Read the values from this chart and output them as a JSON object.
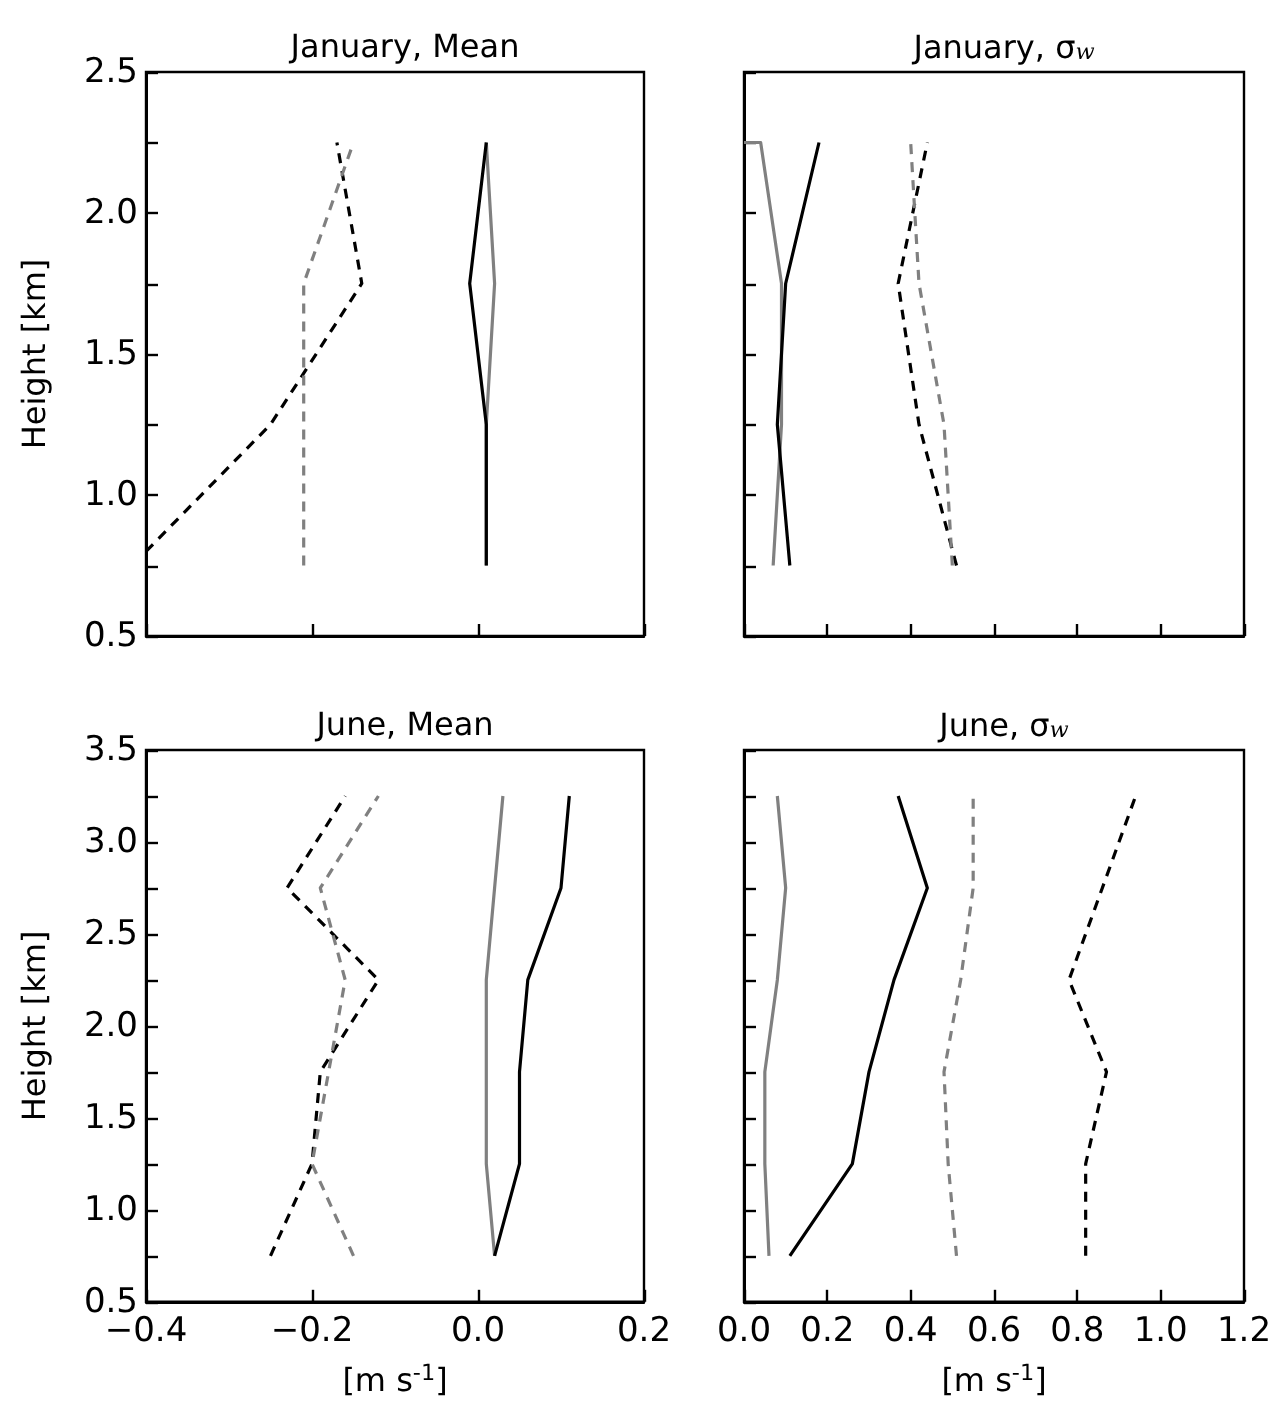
{
  "chart_data": [
    {
      "type": "line",
      "title": "January, Mean",
      "ylabel": "Height [km]",
      "marker": "none",
      "grid": false,
      "tick_labels": "y",
      "xlim": [
        -0.4,
        0.2
      ],
      "xticks": [
        -0.4,
        -0.2,
        0,
        0.2
      ],
      "ylim": [
        0.5,
        2.5
      ],
      "yticks": [
        {
          "value": 0.5,
          "label": "0.5"
        },
        {
          "value": 0.75,
          "label": null
        },
        {
          "value": 1,
          "label": "1.0"
        },
        {
          "value": 1.25,
          "label": null
        },
        {
          "value": 1.5,
          "label": "1.5"
        },
        {
          "value": 1.75,
          "label": null
        },
        {
          "value": 2,
          "label": "2.0"
        },
        {
          "value": 2.25,
          "label": null
        },
        {
          "value": 2.5,
          "label": "2.5"
        }
      ],
      "series": [
        {
          "color": "#000000",
          "line_style": "dashed",
          "x": [
            -0.4,
            -0.25,
            -0.14,
            -0.17
          ],
          "values": [
            0.8,
            1.25,
            1.75,
            2.25
          ]
        },
        {
          "color": "#808080",
          "line_style": "dashed",
          "x": [
            -0.21,
            -0.21,
            -0.21,
            -0.15
          ],
          "values": [
            0.75,
            1.25,
            1.75,
            2.25
          ]
        },
        {
          "color": "#808080",
          "line_style": "solid",
          "x": [
            0.01,
            0.01,
            0.02,
            0.01
          ],
          "values": [
            0.75,
            1.25,
            1.75,
            2.25
          ]
        },
        {
          "color": "#000000",
          "line_style": "solid",
          "x": [
            0.01,
            0.01,
            -0.01,
            0.01
          ],
          "values": [
            0.75,
            1.25,
            1.75,
            2.25
          ]
        }
      ]
    },
    {
      "type": "line",
      "title": "January, σ$_{w}$",
      "marker": "none",
      "grid": false,
      "tick_labels": false,
      "xlim": [
        0,
        1.2
      ],
      "xticks": [
        0,
        0.2,
        0.4,
        0.6,
        0.8,
        1,
        1.2
      ],
      "ylim": [
        0.5,
        2.5
      ],
      "yticks": [
        0.5,
        0.75,
        1,
        1.25,
        1.5,
        1.75,
        2,
        2.25,
        2.5
      ],
      "series": [
        {
          "color": "#000000",
          "line_style": "dashed",
          "x": [
            0.51,
            0.42,
            0.37,
            0.44
          ],
          "values": [
            0.75,
            1.25,
            1.75,
            2.25
          ]
        },
        {
          "color": "#808080",
          "line_style": "dashed",
          "x": [
            0.5,
            0.48,
            0.42,
            0.4
          ],
          "values": [
            0.75,
            1.25,
            1.75,
            2.25
          ]
        },
        {
          "color": "#808080",
          "line_style": "solid",
          "x": [
            0.07,
            0.09,
            0.09,
            0.04,
            0
          ],
          "values": [
            0.75,
            1.25,
            1.75,
            2.25,
            2.25
          ]
        },
        {
          "color": "#000000",
          "line_style": "solid",
          "x": [
            0.11,
            0.08,
            0.1,
            0.18
          ],
          "values": [
            0.75,
            1.25,
            1.75,
            2.25
          ]
        }
      ]
    },
    {
      "type": "line",
      "title": "June, Mean",
      "xlabel": "[m s$^{-1}$]",
      "ylabel": "Height [km]",
      "marker": "none",
      "grid": false,
      "xlim": [
        -0.4,
        0.2
      ],
      "xticks": [
        {
          "value": -0.4,
          "label": "−0.4"
        },
        {
          "value": -0.2,
          "label": "−0.2"
        },
        {
          "value": 0,
          "label": "0.0"
        },
        {
          "value": 0.2,
          "label": "0.2"
        }
      ],
      "ylim": [
        0.5,
        3.5
      ],
      "yticks": [
        {
          "value": 0.5,
          "label": "0.5"
        },
        {
          "value": 0.75,
          "label": null
        },
        {
          "value": 1,
          "label": "1.0"
        },
        {
          "value": 1.25,
          "label": null
        },
        {
          "value": 1.5,
          "label": "1.5"
        },
        {
          "value": 1.75,
          "label": null
        },
        {
          "value": 2,
          "label": "2.0"
        },
        {
          "value": 2.25,
          "label": null
        },
        {
          "value": 2.5,
          "label": "2.5"
        },
        {
          "value": 2.75,
          "label": null
        },
        {
          "value": 3,
          "label": "3.0"
        },
        {
          "value": 3.25,
          "label": null
        },
        {
          "value": 3.5,
          "label": "3.5"
        }
      ],
      "series": [
        {
          "color": "#000000",
          "line_style": "dashed",
          "x": [
            -0.25,
            -0.2,
            -0.19,
            -0.12,
            -0.23,
            -0.16
          ],
          "values": [
            0.75,
            1.25,
            1.75,
            2.25,
            2.75,
            3.25
          ]
        },
        {
          "color": "#808080",
          "line_style": "dashed",
          "x": [
            -0.15,
            -0.2,
            -0.18,
            -0.16,
            -0.19,
            -0.12
          ],
          "values": [
            0.75,
            1.25,
            1.75,
            2.25,
            2.75,
            3.25
          ]
        },
        {
          "color": "#808080",
          "line_style": "solid",
          "x": [
            0.02,
            0.01,
            0.01,
            0.01,
            0.02,
            0.03
          ],
          "values": [
            0.75,
            1.25,
            1.75,
            2.25,
            2.75,
            3.25
          ]
        },
        {
          "color": "#000000",
          "line_style": "solid",
          "x": [
            0.02,
            0.05,
            0.05,
            0.06,
            0.1,
            0.11
          ],
          "values": [
            0.75,
            1.25,
            1.75,
            2.25,
            2.75,
            3.25
          ]
        }
      ]
    },
    {
      "type": "line",
      "title": "June, σ$_{w}$",
      "xlabel": "[m s$^{-1}$]",
      "marker": "none",
      "grid": false,
      "tick_labels": "x",
      "xlim": [
        0,
        1.2
      ],
      "xticks": [
        {
          "value": 0,
          "label": "0.0"
        },
        {
          "value": 0.2,
          "label": "0.2"
        },
        {
          "value": 0.4,
          "label": "0.4"
        },
        {
          "value": 0.6,
          "label": "0.6"
        },
        {
          "value": 0.8,
          "label": "0.8"
        },
        {
          "value": 1,
          "label": "1.0"
        },
        {
          "value": 1.2,
          "label": "1.2"
        }
      ],
      "ylim": [
        0.5,
        3.5
      ],
      "yticks": [
        0.5,
        0.75,
        1,
        1.25,
        1.5,
        1.75,
        2,
        2.25,
        2.5,
        2.75,
        3,
        3.25,
        3.5
      ],
      "series": [
        {
          "color": "#000000",
          "line_style": "dashed",
          "x": [
            0.82,
            0.82,
            0.87,
            0.78,
            0.86,
            0.94
          ],
          "values": [
            0.75,
            1.25,
            1.75,
            2.25,
            2.75,
            3.25
          ]
        },
        {
          "color": "#808080",
          "line_style": "dashed",
          "x": [
            0.51,
            0.49,
            0.48,
            0.52,
            0.55,
            0.55
          ],
          "values": [
            0.75,
            1.25,
            1.75,
            2.25,
            2.75,
            3.25
          ]
        },
        {
          "color": "#808080",
          "line_style": "solid",
          "x": [
            0.06,
            0.05,
            0.05,
            0.08,
            0.1,
            0.08
          ],
          "values": [
            0.75,
            1.25,
            1.75,
            2.25,
            2.75,
            3.25
          ]
        },
        {
          "color": "#000000",
          "line_style": "solid",
          "x": [
            0.11,
            0.26,
            0.3,
            0.36,
            0.44,
            0.37
          ],
          "values": [
            0.75,
            1.25,
            1.75,
            2.25,
            2.75,
            3.25
          ]
        }
      ]
    }
  ]
}
